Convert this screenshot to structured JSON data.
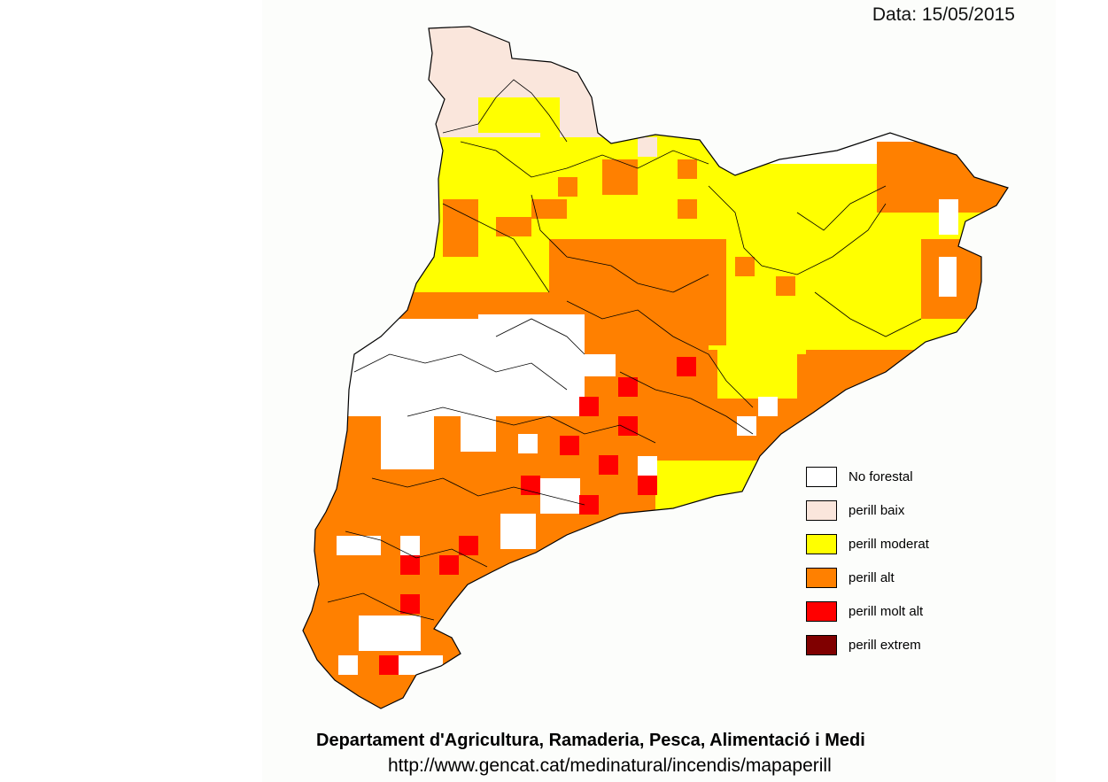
{
  "header": {
    "date_text": "Data: 15/05/2015"
  },
  "legend": {
    "items": [
      {
        "label": "No forestal",
        "color": "#ffffff"
      },
      {
        "label": "perill baix",
        "color": "#fae6dc"
      },
      {
        "label": "perill moderat",
        "color": "#ffff00"
      },
      {
        "label": "perill alt",
        "color": "#ff8000"
      },
      {
        "label": "perill molt alt",
        "color": "#ff0000"
      },
      {
        "label": "perill extrem",
        "color": "#800000"
      }
    ]
  },
  "footer": {
    "title": "Departament d'Agricultura, Ramaderia, Pesca, Alimentació i Medi",
    "url": "http://www.gencat.cat/medinatural/incendis/mapaperill"
  }
}
